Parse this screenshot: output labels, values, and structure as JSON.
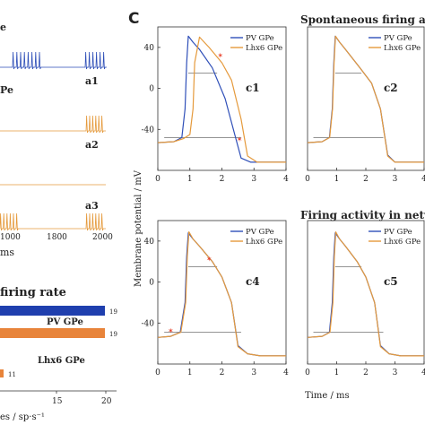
{
  "colors": {
    "pv": "#2f4fb8",
    "lhx6": "#e59a3c",
    "black": "#222222",
    "marker": "#e8402a"
  },
  "left_panel": {
    "trace_labels": [
      "e",
      "Pe",
      "a1",
      "a2",
      "a3"
    ],
    "time_ticks": [
      "1000",
      "1800",
      "2000"
    ],
    "time_unit": "ms",
    "rate_title": "firing rate",
    "bar_labels": [
      "PV GPe",
      "Lhx6 GPe"
    ],
    "x_ticks": [
      "15",
      "20"
    ],
    "x_label": "es / sp·s⁻¹",
    "bar_values": [
      "19",
      "19",
      "11"
    ]
  },
  "panel_letter": "C",
  "section_titles": [
    "Spontaneous firing ac",
    "Firing activity in netw"
  ],
  "ylabel": "Membrane potential / mV",
  "xlabel": "Time / ms",
  "legend": {
    "pv": "PV GPe",
    "lhx6": "Lhx6 GPe"
  },
  "chart_data": [
    {
      "id": "c1",
      "type": "line",
      "label": "c1",
      "xlim": [
        0,
        4
      ],
      "ylim": [
        -80,
        60
      ],
      "x_ticks": [
        "0",
        "1",
        "2",
        "3",
        "4"
      ],
      "y_ticks": [
        "40",
        "0",
        "-40"
      ],
      "series": [
        {
          "name": "PV GPe",
          "x": [
            0,
            0.5,
            0.75,
            0.85,
            0.9,
            0.95,
            1.1,
            1.3,
            1.7,
            2.1,
            2.4,
            2.6,
            2.9,
            3.3,
            4
          ],
          "y": [
            -53,
            -52,
            -48,
            -20,
            25,
            51,
            45,
            38,
            20,
            -10,
            -45,
            -68,
            -72,
            -72,
            -72
          ]
        },
        {
          "name": "Lhx6 GPe",
          "x": [
            0,
            0.5,
            0.8,
            1.0,
            1.1,
            1.15,
            1.3,
            1.6,
            2.0,
            2.3,
            2.6,
            2.8,
            3.1,
            3.4,
            4
          ],
          "y": [
            -53,
            -52,
            -49,
            -45,
            -20,
            25,
            50,
            40,
            25,
            8,
            -30,
            -66,
            -72,
            -72,
            -72
          ]
        }
      ]
    },
    {
      "id": "c2",
      "type": "line",
      "label": "c2",
      "xlim": [
        0,
        4
      ],
      "ylim": [
        -80,
        60
      ],
      "x_ticks": [
        "0",
        "1",
        "2",
        "3",
        "4"
      ],
      "y_ticks": [],
      "series": [
        {
          "name": "PV GPe",
          "x": [
            0,
            0.5,
            0.75,
            0.85,
            0.9,
            0.95,
            1.1,
            1.3,
            1.8,
            2.2,
            2.5,
            2.75,
            3.0,
            3.4,
            4
          ],
          "y": [
            -53,
            -52,
            -48,
            -20,
            25,
            51,
            45,
            38,
            20,
            5,
            -20,
            -65,
            -72,
            -72,
            -72
          ]
        },
        {
          "name": "Lhx6 GPe",
          "x": [
            0,
            0.5,
            0.76,
            0.86,
            0.91,
            0.96,
            1.1,
            1.3,
            1.8,
            2.2,
            2.5,
            2.75,
            3.0,
            3.4,
            4
          ],
          "y": [
            -53,
            -52,
            -48,
            -20,
            25,
            51,
            45,
            38,
            20,
            5,
            -20,
            -66,
            -72,
            -72,
            -72
          ]
        }
      ]
    },
    {
      "id": "c4",
      "type": "line",
      "label": "c4",
      "xlim": [
        0,
        4
      ],
      "ylim": [
        -80,
        60
      ],
      "x_ticks": [
        "0",
        "1",
        "2",
        "3",
        "4"
      ],
      "y_ticks": [
        "40",
        "0",
        "-40"
      ],
      "series": [
        {
          "name": "PV GPe",
          "x": [
            0,
            0.4,
            0.7,
            0.85,
            0.9,
            0.95,
            1.1,
            1.3,
            1.7,
            2.0,
            2.3,
            2.5,
            2.8,
            3.2,
            4
          ],
          "y": [
            -54,
            -53,
            -49,
            -20,
            25,
            48,
            42,
            35,
            20,
            5,
            -20,
            -62,
            -70,
            -72,
            -72
          ]
        },
        {
          "name": "Lhx6 GPe",
          "x": [
            0,
            0.4,
            0.72,
            0.87,
            0.92,
            0.97,
            1.1,
            1.3,
            1.7,
            2.0,
            2.3,
            2.5,
            2.8,
            3.2,
            4
          ],
          "y": [
            -54,
            -53,
            -49,
            -20,
            25,
            49,
            42,
            35,
            20,
            5,
            -20,
            -63,
            -70,
            -72,
            -72
          ]
        }
      ]
    },
    {
      "id": "c5",
      "type": "line",
      "label": "c5",
      "xlim": [
        0,
        4
      ],
      "ylim": [
        -80,
        60
      ],
      "x_ticks": [
        "0",
        "1",
        "2",
        "3",
        "4"
      ],
      "y_ticks": [],
      "series": [
        {
          "name": "PV GPe",
          "x": [
            0,
            0.5,
            0.75,
            0.85,
            0.9,
            0.95,
            1.1,
            1.3,
            1.7,
            2.0,
            2.3,
            2.5,
            2.8,
            3.2,
            4
          ],
          "y": [
            -54,
            -53,
            -49,
            -20,
            25,
            48,
            42,
            35,
            20,
            5,
            -20,
            -62,
            -70,
            -72,
            -72
          ]
        },
        {
          "name": "Lhx6 GPe",
          "x": [
            0,
            0.5,
            0.77,
            0.87,
            0.92,
            0.97,
            1.1,
            1.3,
            1.7,
            2.0,
            2.3,
            2.5,
            2.8,
            3.2,
            4
          ],
          "y": [
            -54,
            -53,
            -49,
            -20,
            25,
            49,
            42,
            35,
            20,
            5,
            -20,
            -63,
            -70,
            -72,
            -72
          ]
        }
      ]
    }
  ]
}
